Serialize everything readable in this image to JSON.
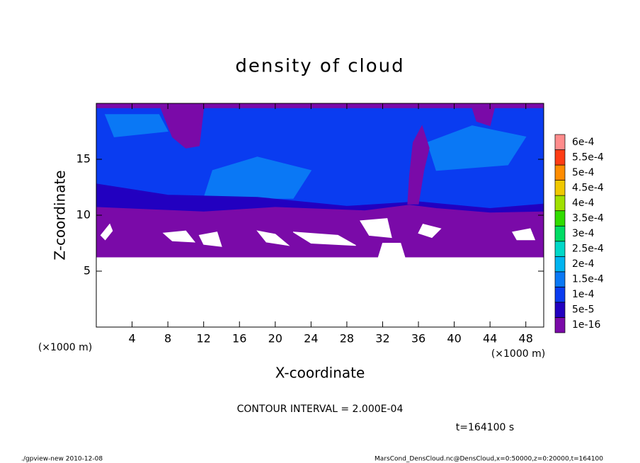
{
  "chart_data": {
    "type": "contour",
    "title": "density of cloud",
    "x_label": "X-coordinate",
    "y_label": "Z-coordinate",
    "x_unit": "(×1000 m)",
    "y_unit": "(×1000 m)",
    "xlim": [
      0,
      50
    ],
    "ylim": [
      0,
      20
    ],
    "xticks": [
      4,
      8,
      12,
      16,
      20,
      24,
      28,
      32,
      36,
      40,
      44,
      48
    ],
    "yticks": [
      5,
      10,
      15
    ],
    "contour_interval": "CONTOUR INTERVAL = 2.000E-04",
    "time_label": "t=164100 s",
    "footer_left": "./gpview-new  2010-12-08",
    "footer_right": "MarsCond_DensCloud.nc@DensCloud,x=0:50000,z=0:20000,t=164100",
    "levels": [
      {
        "value": 1e-16,
        "label": "1e-16"
      },
      {
        "value": 5e-05,
        "label": "5e-5"
      },
      {
        "value": 0.0001,
        "label": "1e-4"
      },
      {
        "value": 0.00015,
        "label": "1.5e-4"
      },
      {
        "value": 0.0002,
        "label": "2e-4"
      },
      {
        "value": 0.00025,
        "label": "2.5e-4"
      },
      {
        "value": 0.0003,
        "label": "3e-4"
      },
      {
        "value": 0.00035,
        "label": "3.5e-4"
      },
      {
        "value": 0.0004,
        "label": "4e-4"
      },
      {
        "value": 0.00045,
        "label": "4.5e-4"
      },
      {
        "value": 0.0005,
        "label": "5e-4"
      },
      {
        "value": 0.00055,
        "label": "5.5e-4"
      },
      {
        "value": 0.0006,
        "label": "6e-4"
      }
    ],
    "colors": [
      "#7a0aa8",
      "#2200c0",
      "#0a3cf0",
      "#0a78f5",
      "#00b4f0",
      "#00d8c8",
      "#00dc64",
      "#30dc00",
      "#a0e000",
      "#f0c800",
      "#ff8c00",
      "#ff3c14",
      "#ff8c8c"
    ],
    "regions": [
      {
        "level": 2,
        "points": [
          [
            0,
            9.8
          ],
          [
            50,
            9.8
          ],
          [
            50,
            20
          ],
          [
            0,
            20
          ]
        ]
      },
      {
        "level": 3,
        "points": [
          [
            12,
            11.5
          ],
          [
            22,
            11.5
          ],
          [
            24,
            14
          ],
          [
            18,
            15.2
          ],
          [
            13,
            14
          ]
        ]
      },
      {
        "level": 3,
        "points": [
          [
            38,
            14
          ],
          [
            46,
            14.5
          ],
          [
            48,
            17
          ],
          [
            42,
            18
          ],
          [
            37,
            16.5
          ]
        ]
      },
      {
        "level": 3,
        "points": [
          [
            2,
            17
          ],
          [
            8,
            17.5
          ],
          [
            7,
            19
          ],
          [
            1,
            19
          ]
        ]
      },
      {
        "level": 1,
        "points": [
          [
            0,
            9.8
          ],
          [
            50,
            9.8
          ],
          [
            50,
            11
          ],
          [
            44,
            10.6
          ],
          [
            36,
            11.2
          ],
          [
            28,
            10.8
          ],
          [
            18,
            11.6
          ],
          [
            8,
            11.8
          ],
          [
            0,
            12.8
          ]
        ]
      },
      {
        "level": 0,
        "points": [
          [
            0,
            6.2
          ],
          [
            50,
            6.2
          ],
          [
            50,
            10.3
          ],
          [
            44,
            10.2
          ],
          [
            38,
            10.6
          ],
          [
            35,
            10.9
          ],
          [
            30,
            10.4
          ],
          [
            20,
            10.7
          ],
          [
            12,
            10.3
          ],
          [
            6,
            10.5
          ],
          [
            0,
            10.7
          ]
        ]
      },
      {
        "level": 0,
        "points": [
          [
            0,
            19.6
          ],
          [
            50,
            19.6
          ],
          [
            50,
            20
          ],
          [
            0,
            20
          ]
        ]
      },
      {
        "level": 0,
        "points": [
          [
            7.2,
            19.6
          ],
          [
            12,
            19.6
          ],
          [
            11.5,
            16.2
          ],
          [
            10,
            16
          ],
          [
            8.5,
            17
          ]
        ]
      },
      {
        "level": 0,
        "points": [
          [
            34.8,
            11
          ],
          [
            36,
            11
          ],
          [
            36.6,
            14
          ],
          [
            37.2,
            16
          ],
          [
            36.4,
            18
          ],
          [
            35.4,
            16.5
          ],
          [
            35,
            13.5
          ]
        ]
      },
      {
        "level": 0,
        "points": [
          [
            42,
            19.6
          ],
          [
            44.5,
            19.6
          ],
          [
            44,
            18
          ],
          [
            42.5,
            18.4
          ]
        ]
      }
    ],
    "holes": [
      {
        "points": [
          [
            0,
            0
          ],
          [
            50,
            0
          ],
          [
            50,
            6.2
          ],
          [
            0,
            6.2
          ]
        ]
      },
      {
        "points": [
          [
            31.5,
            6.2
          ],
          [
            34.5,
            6.2
          ],
          [
            34,
            7.5
          ],
          [
            32,
            7.5
          ]
        ]
      },
      {
        "points": [
          [
            0.5,
            8.2
          ],
          [
            1.5,
            9.2
          ],
          [
            1.8,
            8.6
          ],
          [
            1,
            7.8
          ]
        ]
      },
      {
        "points": [
          [
            7.5,
            8.4
          ],
          [
            10,
            8.6
          ],
          [
            11,
            7.6
          ],
          [
            8.5,
            7.7
          ]
        ]
      },
      {
        "points": [
          [
            11.5,
            8.2
          ],
          [
            13.5,
            8.5
          ],
          [
            14,
            7.2
          ],
          [
            12,
            7.4
          ]
        ]
      },
      {
        "points": [
          [
            18,
            8.6
          ],
          [
            20,
            8.3
          ],
          [
            21.5,
            7.3
          ],
          [
            19,
            7.6
          ]
        ]
      },
      {
        "points": [
          [
            22,
            8.5
          ],
          [
            27,
            8.2
          ],
          [
            29,
            7.3
          ],
          [
            24,
            7.5
          ]
        ]
      },
      {
        "points": [
          [
            29.5,
            9.5
          ],
          [
            32.5,
            9.7
          ],
          [
            33,
            8
          ],
          [
            30.5,
            8.2
          ]
        ]
      },
      {
        "points": [
          [
            36.5,
            9.2
          ],
          [
            38.5,
            8.8
          ],
          [
            37.5,
            8
          ],
          [
            36,
            8.4
          ]
        ]
      },
      {
        "points": [
          [
            46.5,
            8.5
          ],
          [
            48.5,
            8.8
          ],
          [
            49,
            7.8
          ],
          [
            47,
            7.8
          ]
        ]
      }
    ]
  }
}
